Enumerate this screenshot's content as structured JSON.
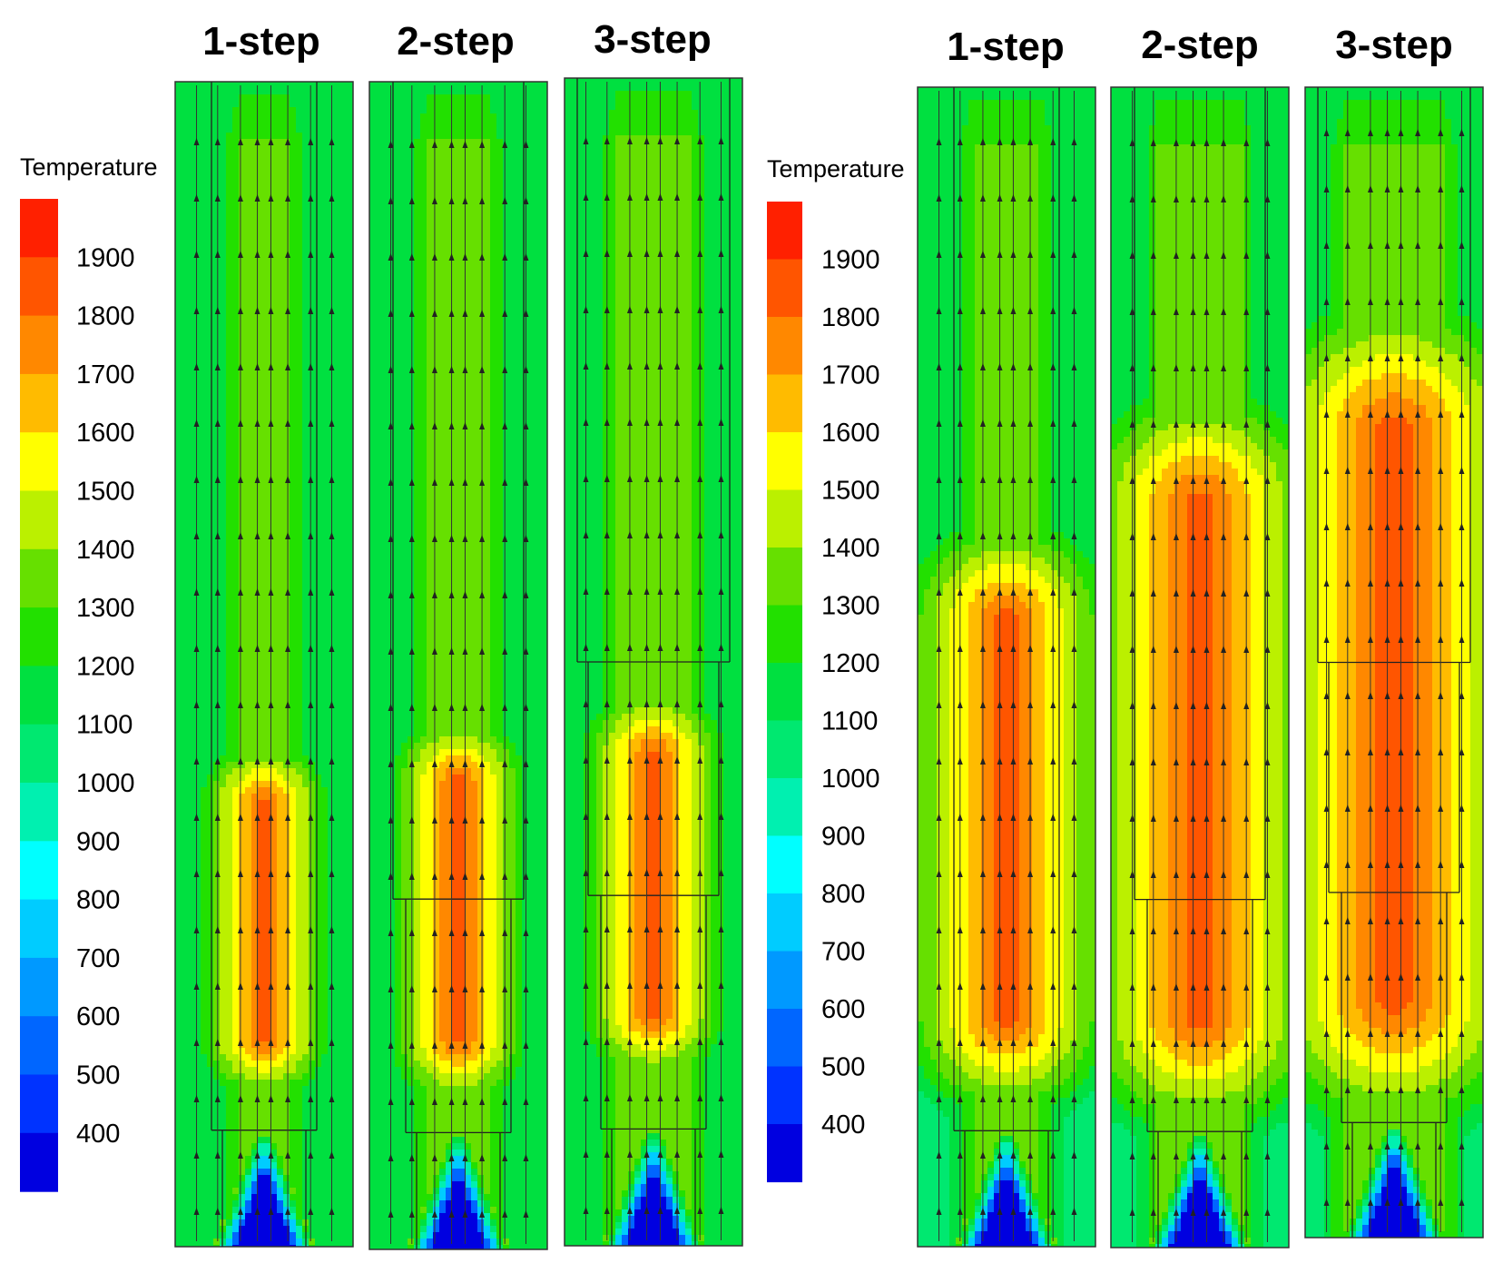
{
  "figure": {
    "panel_group_left": {
      "legend_title": "Temperature",
      "panels": [
        {
          "label": "1-step",
          "steps": 1
        },
        {
          "label": "2-step",
          "steps": 2
        },
        {
          "label": "3-step",
          "steps": 3
        }
      ]
    },
    "panel_group_right": {
      "legend_title": "Temperature",
      "panels": [
        {
          "label": "1-step",
          "steps": 1
        },
        {
          "label": "2-step",
          "steps": 2
        },
        {
          "label": "3-step",
          "steps": 3
        }
      ]
    },
    "legend_ticks": [
      "1900",
      "1800",
      "1700",
      "1600",
      "1500",
      "1400",
      "1300",
      "1200",
      "1100",
      "1000",
      "900",
      "800",
      "700",
      "600",
      "500",
      "400"
    ],
    "legend_range": [
      400,
      1950
    ],
    "colorbar": [
      "#0000e0",
      "#0033ff",
      "#0066ff",
      "#0099ff",
      "#00ccff",
      "#00ffff",
      "#00f0b0",
      "#00e870",
      "#00e040",
      "#22e000",
      "#66e000",
      "#bbf000",
      "#ffff00",
      "#ffbb00",
      "#ff8800",
      "#ff5500",
      "#ff2000"
    ]
  }
}
